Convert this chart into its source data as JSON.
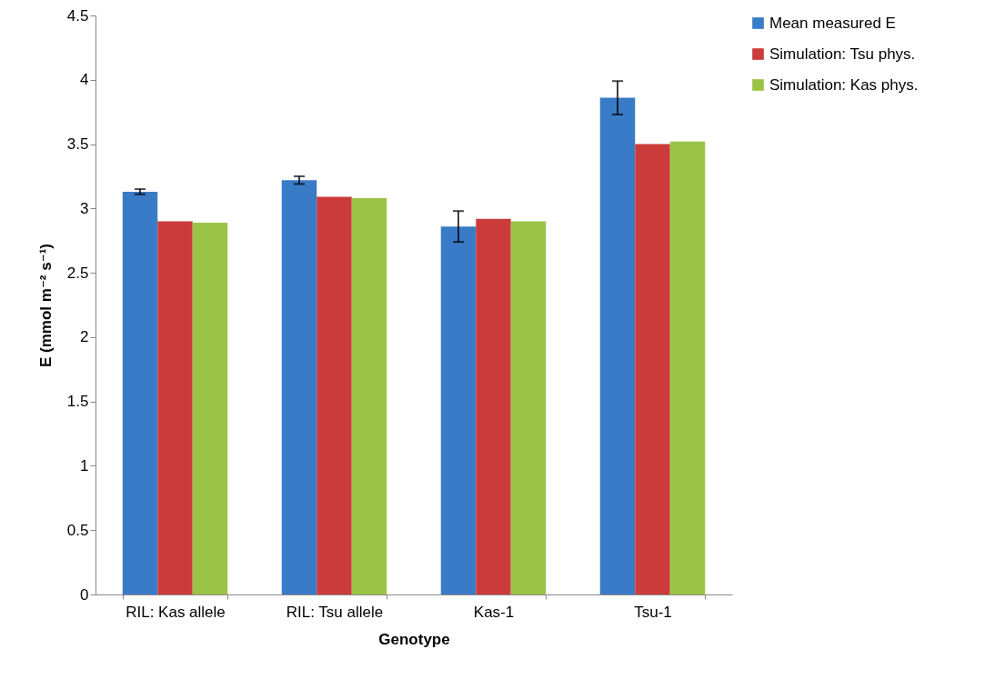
{
  "chart_data": {
    "type": "bar",
    "xlabel": "Genotype",
    "ylabel": "E (mmol m⁻² s⁻¹)",
    "categories": [
      "RIL: Kas allele",
      "RIL: Tsu allele",
      "Kas-1",
      "Tsu-1"
    ],
    "series": [
      {
        "name": "Mean measured E",
        "color": "#3a7bc8",
        "values": [
          3.13,
          3.22,
          2.86,
          3.86
        ],
        "errors": [
          0.02,
          0.03,
          0.12,
          0.13
        ]
      },
      {
        "name": "Simulation: Tsu phys.",
        "color": "#cc3b3b",
        "values": [
          2.9,
          3.09,
          2.92,
          3.5
        ]
      },
      {
        "name": "Simulation: Kas phys.",
        "color": "#9bc447",
        "values": [
          2.89,
          3.08,
          2.9,
          3.52
        ]
      }
    ],
    "ylim": [
      0,
      4.5
    ],
    "yticks": [
      0,
      0.5,
      1,
      1.5,
      2,
      2.5,
      3,
      3.5,
      4,
      4.5
    ],
    "grid": false,
    "legend": "right"
  }
}
